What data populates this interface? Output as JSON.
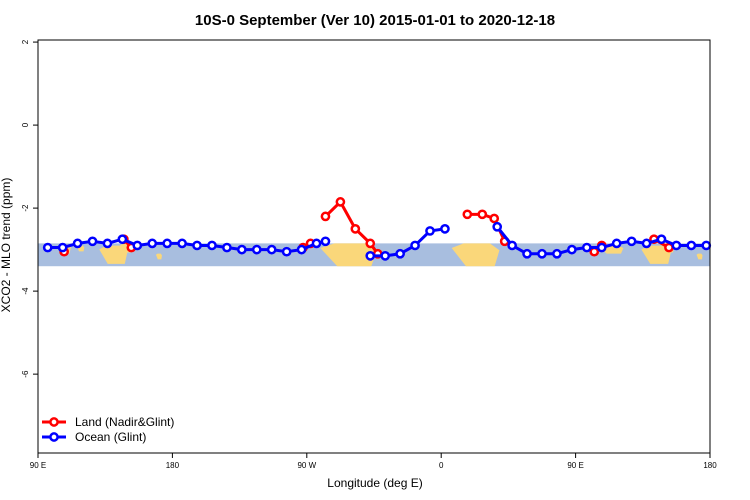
{
  "chart_data": {
    "type": "line",
    "title": "10S-0 September (Ver 10)   2015-01-01 to 2020-12-18",
    "xlabel": "Longitude (deg E)",
    "ylabel": "XCO2 - MLO trend (ppm)",
    "xlim": [
      90,
      540
    ],
    "ylim": [
      -7.9,
      2.05
    ],
    "x_ticks": [
      {
        "value": 90,
        "label": "90 E"
      },
      {
        "value": 180,
        "label": "180"
      },
      {
        "value": 270,
        "label": "90 W"
      },
      {
        "value": 360,
        "label": "0"
      },
      {
        "value": 450,
        "label": "90 E"
      },
      {
        "value": 540,
        "label": "180"
      }
    ],
    "y_ticks": [
      {
        "value": 2,
        "label": "2"
      },
      {
        "value": 0,
        "label": "0"
      },
      {
        "value": -2,
        "label": "-2"
      },
      {
        "value": -4,
        "label": "-4"
      },
      {
        "value": -6,
        "label": "-6"
      }
    ],
    "legend_position": "bottom-left",
    "map_band": {
      "ymin": -3.4,
      "ymax": -2.85,
      "ocean_color": "#a8bedf",
      "land_color": "#fad77a"
    },
    "series": [
      {
        "name": "Land (Nadir&Glint)",
        "color": "#ff0000",
        "segments": [
          [
            [
              107.5,
              -3.05
            ]
          ],
          [
            [
              147.5,
              -2.75
            ],
            [
              152.5,
              -2.95
            ]
          ],
          [
            [
              267.5,
              -2.95
            ],
            [
              272.5,
              -2.85
            ]
          ],
          [
            [
              282.5,
              -2.2
            ],
            [
              292.5,
              -1.85
            ],
            [
              302.5,
              -2.5
            ],
            [
              312.5,
              -2.85
            ],
            [
              317.5,
              -3.1
            ]
          ],
          [
            [
              377.5,
              -2.15
            ],
            [
              387.5,
              -2.15
            ],
            [
              395.5,
              -2.25
            ],
            [
              402.5,
              -2.8
            ]
          ],
          [
            [
              462.5,
              -3.05
            ],
            [
              467.5,
              -2.9
            ]
          ],
          [
            [
              502.5,
              -2.75
            ],
            [
              512.5,
              -2.95
            ]
          ]
        ]
      },
      {
        "name": "Ocean (Glint)",
        "color": "#0000ff",
        "segments": [
          [
            [
              96.5,
              -2.95
            ],
            [
              106.5,
              -2.95
            ],
            [
              116.5,
              -2.85
            ],
            [
              126.5,
              -2.8
            ],
            [
              136.5,
              -2.85
            ],
            [
              146.5,
              -2.75
            ],
            [
              156.5,
              -2.9
            ],
            [
              166.5,
              -2.85
            ],
            [
              176.5,
              -2.85
            ],
            [
              186.5,
              -2.85
            ],
            [
              196.5,
              -2.9
            ],
            [
              206.5,
              -2.9
            ],
            [
              216.5,
              -2.95
            ],
            [
              226.5,
              -3.0
            ],
            [
              236.5,
              -3.0
            ],
            [
              246.5,
              -3.0
            ],
            [
              256.5,
              -3.05
            ],
            [
              266.5,
              -3.0
            ],
            [
              276.5,
              -2.85
            ],
            [
              282.5,
              -2.8
            ]
          ],
          [
            [
              312.5,
              -3.15
            ],
            [
              322.5,
              -3.15
            ],
            [
              332.5,
              -3.1
            ],
            [
              342.5,
              -2.9
            ],
            [
              352.5,
              -2.55
            ],
            [
              362.5,
              -2.5
            ]
          ],
          [
            [
              397.5,
              -2.45
            ],
            [
              407.5,
              -2.9
            ],
            [
              417.5,
              -3.1
            ],
            [
              427.5,
              -3.1
            ],
            [
              437.5,
              -3.1
            ],
            [
              447.5,
              -3.0
            ],
            [
              457.5,
              -2.95
            ],
            [
              467.5,
              -2.95
            ],
            [
              477.5,
              -2.85
            ],
            [
              487.5,
              -2.8
            ],
            [
              497.5,
              -2.85
            ],
            [
              507.5,
              -2.75
            ],
            [
              517.5,
              -2.9
            ],
            [
              527.5,
              -2.9
            ],
            [
              537.5,
              -2.9
            ]
          ]
        ]
      }
    ]
  }
}
